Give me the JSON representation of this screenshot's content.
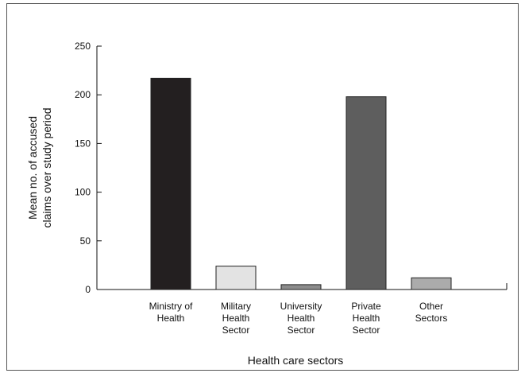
{
  "chart_data": {
    "type": "bar",
    "title": "",
    "xlabel": "Health care sectors",
    "ylabel_lines": [
      "Mean no. of accused",
      "claims over study period"
    ],
    "ylim": [
      0,
      250
    ],
    "yticks": [
      0,
      50,
      100,
      150,
      200,
      250
    ],
    "categories": [
      [
        "Ministry of",
        "Health"
      ],
      [
        "Military",
        "Health",
        "Sector"
      ],
      [
        "University",
        "Health",
        "Sector"
      ],
      [
        "Private",
        "Health",
        "Sector"
      ],
      [
        "Other",
        "Sectors"
      ]
    ],
    "values": [
      217,
      24,
      5,
      198,
      12
    ],
    "colors": [
      "#231f20",
      "#e3e3e3",
      "#8c8c8c",
      "#5e5e5e",
      "#ababab"
    ],
    "grid": false,
    "legend": "none"
  }
}
